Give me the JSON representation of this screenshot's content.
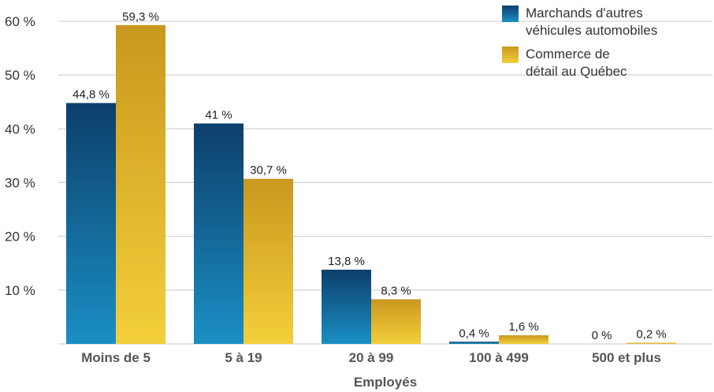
{
  "chart_data": {
    "type": "bar",
    "categories": [
      "Moins de 5",
      "5 à 19",
      "20 à 99",
      "100 à 499",
      "500 et plus"
    ],
    "series": [
      {
        "name": "Marchands d'autres véhicules automobiles",
        "legend_lines": [
          "Marchands d'autres",
          "véhicules automobiles"
        ],
        "values": [
          44.8,
          41,
          13.8,
          0.4,
          0
        ],
        "labels": [
          "44,8 %",
          "41 %",
          "13,8 %",
          "0,4 %",
          "0 %"
        ],
        "color_top": "#0d3f6b",
        "color_bottom": "#1a8fc4"
      },
      {
        "name": "Commerce de détail au Québec",
        "legend_lines": [
          "Commerce de",
          "détail au Québec"
        ],
        "values": [
          59.3,
          30.7,
          8.3,
          1.6,
          0.2
        ],
        "labels": [
          "59,3 %",
          "30,7 %",
          "8,3 %",
          "1,6 %",
          "0,2 %"
        ],
        "color_top": "#c9981f",
        "color_bottom": "#f3cf3a"
      }
    ],
    "xlabel": "Employés",
    "ylabel": "",
    "ylim": [
      0,
      60
    ],
    "yticks": [
      10,
      20,
      30,
      40,
      50,
      60
    ],
    "ytick_labels": [
      "10 %",
      "20 %",
      "30 %",
      "40 %",
      "50 %",
      "60 %"
    ],
    "grid": true,
    "legend_position": "top-right"
  }
}
